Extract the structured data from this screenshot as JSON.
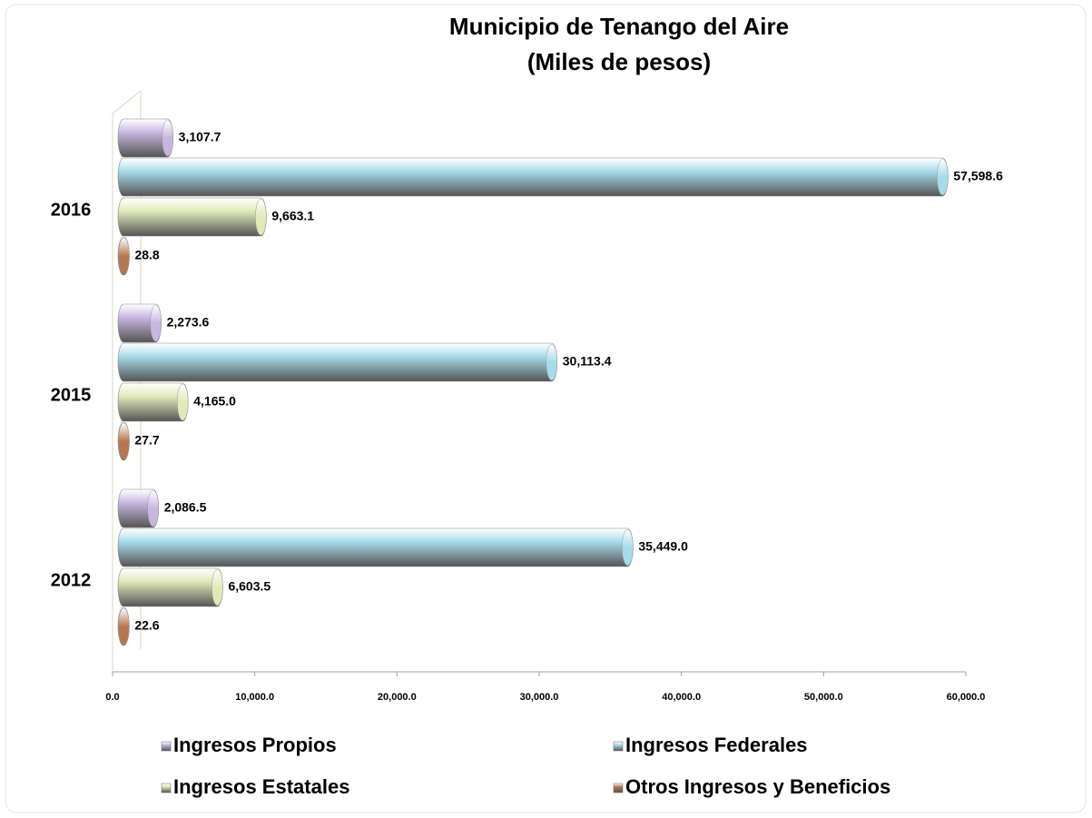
{
  "chart_data": {
    "type": "barh",
    "title": "Municipio de Tenango del Aire",
    "subtitle": "(Miles de pesos)",
    "categories": [
      "2016",
      "2015",
      "2012"
    ],
    "series": [
      {
        "name": "Ingresos Propios",
        "color": "#c7b6e0",
        "values": [
          3107.7,
          2273.6,
          2086.5
        ],
        "value_labels": [
          "3,107.7",
          "2,273.6",
          "2,086.5"
        ]
      },
      {
        "name": "Ingresos Federales",
        "color": "#a6dbea",
        "values": [
          57598.6,
          30113.4,
          35449.0
        ],
        "value_labels": [
          "57,598.6",
          "30,113.4",
          "35,449.0"
        ]
      },
      {
        "name": "Ingresos Estatales",
        "color": "#dfe9b9",
        "values": [
          9663.1,
          4165.0,
          6603.5
        ],
        "value_labels": [
          "9,663.1",
          "4,165.0",
          "6,603.5"
        ]
      },
      {
        "name": "Otros Ingresos y Beneficios",
        "color": "#b5774f",
        "values": [
          28.8,
          27.7,
          22.6
        ],
        "value_labels": [
          "28.8",
          "27.7",
          "22.6"
        ]
      }
    ],
    "xlim": [
      0,
      60000
    ],
    "xticks": [
      {
        "value": 0,
        "label": "0.0"
      },
      {
        "value": 10000,
        "label": "10,000.0"
      },
      {
        "value": 20000,
        "label": "20,000.0"
      },
      {
        "value": 30000,
        "label": "30,000.0"
      },
      {
        "value": 40000,
        "label": "40,000.0"
      },
      {
        "value": 50000,
        "label": "50,000.0"
      },
      {
        "value": 60000,
        "label": "60,000.0"
      }
    ],
    "legend": "bottom"
  }
}
